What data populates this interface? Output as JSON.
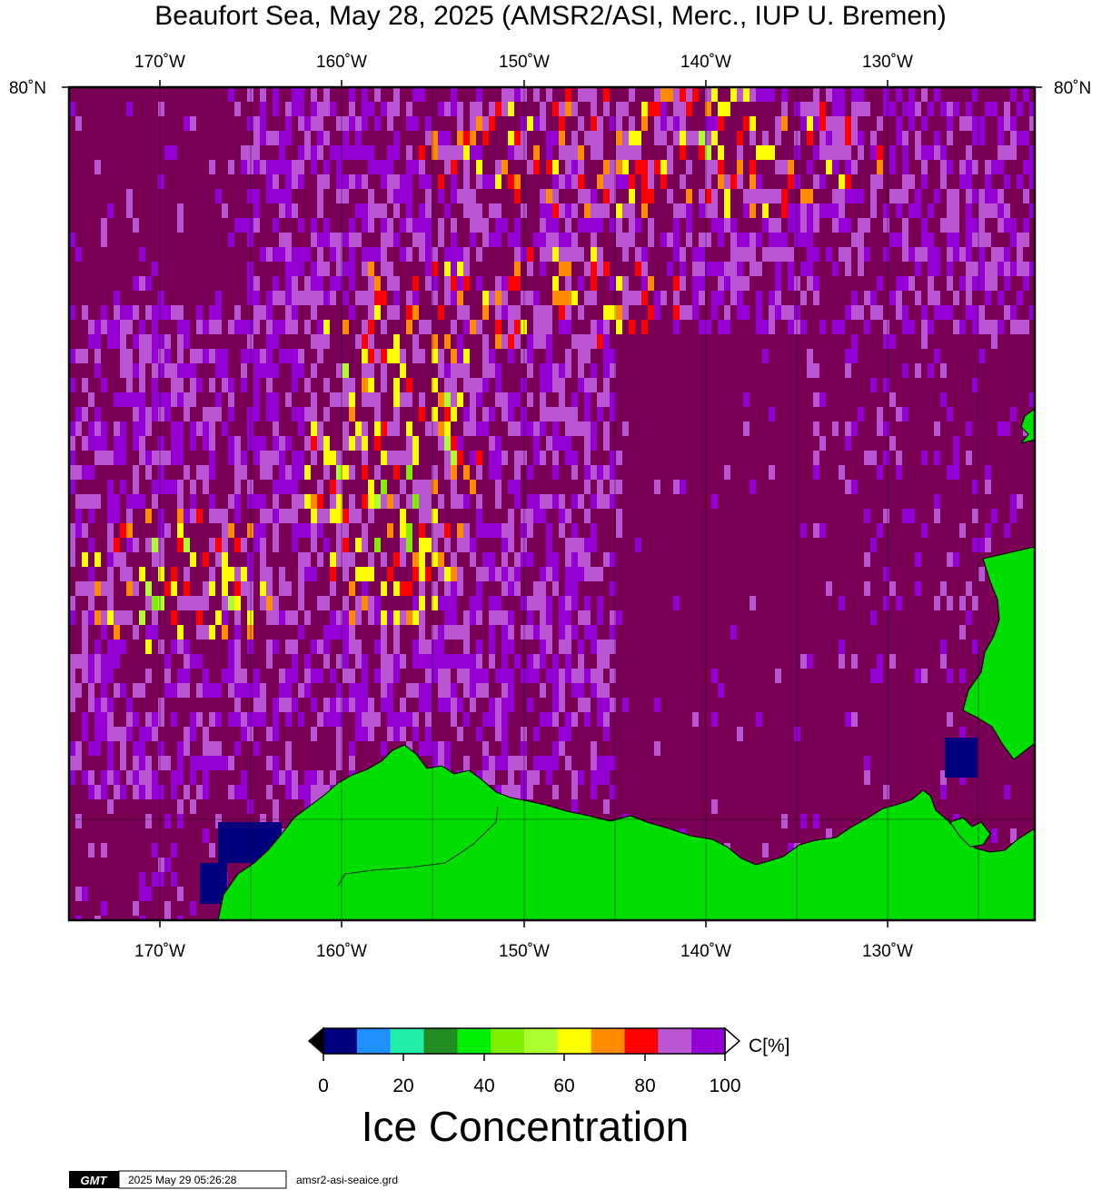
{
  "title": "Beaufort Sea, May 28, 2025 (AMSR2/ASI, Merc., IUP U. Bremen)",
  "longitude_ticks": [
    "170˚W",
    "160˚W",
    "150˚W",
    "140˚W",
    "130˚W"
  ],
  "latitude_ticks": {
    "left": "80˚N",
    "right": "80˚N"
  },
  "colorbar": {
    "unit_label": "C[%]",
    "tick_labels": [
      "0",
      "20",
      "40",
      "60",
      "80",
      "100"
    ],
    "colors": [
      "#00007f",
      "#1e90ff",
      "#22eeaa",
      "#228b22",
      "#00ee00",
      "#7fee00",
      "#adff2f",
      "#ffff00",
      "#ff8c00",
      "#ff0000",
      "#ba55d3",
      "#9400d3"
    ],
    "heading": "Ice Concentration"
  },
  "map_colors": {
    "open_water": "#7a0055",
    "land": "#00dd00",
    "frame": "#000000"
  },
  "footer": {
    "logo_text": "GMT",
    "timestamp": "2025 May 29 05:26:28",
    "filename": "amsr2-asi-seaice.grd"
  }
}
